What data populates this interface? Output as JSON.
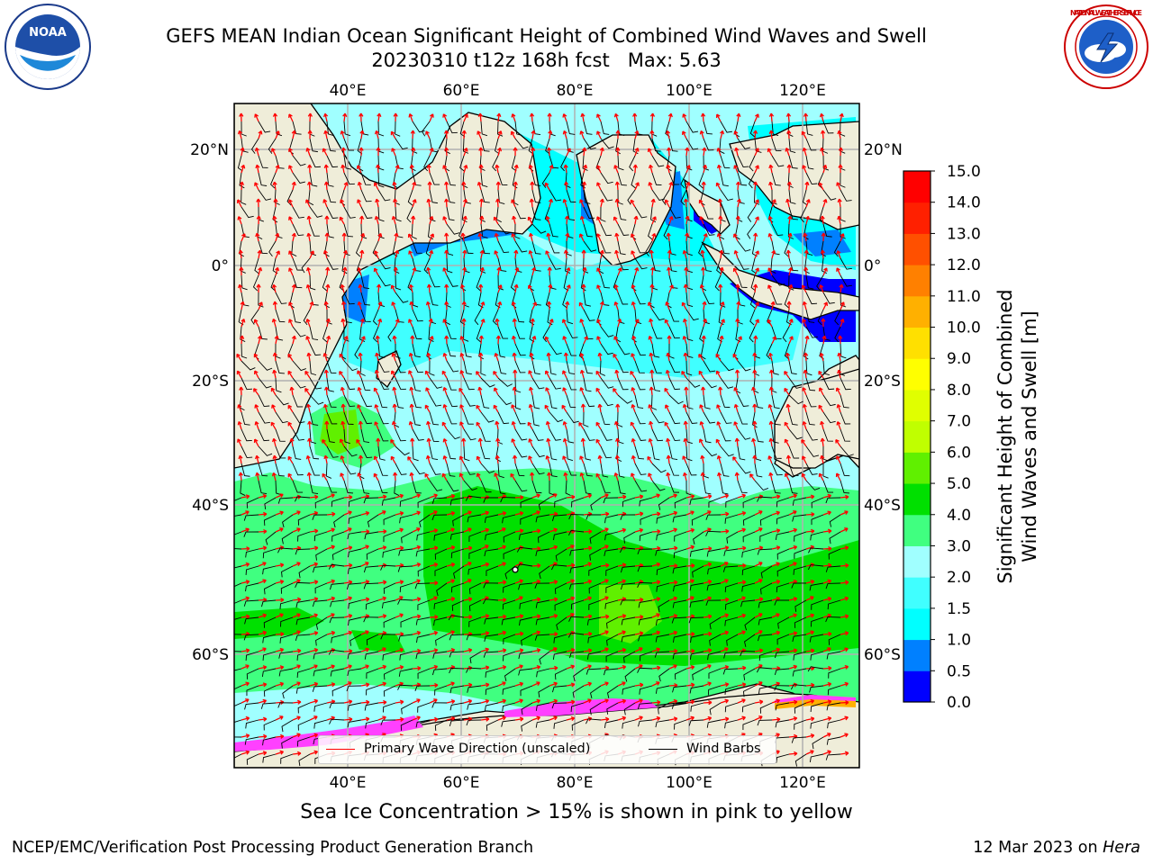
{
  "title": {
    "line1": "GEFS MEAN Indian Ocean Significant Height of Combined Wind Waves and Swell",
    "line2_date": "20230310 t12z 168h fcst",
    "line2_max": "Max: 5.63"
  },
  "logos": {
    "left": "NOAA",
    "right": "NATIONAL WEATHER SERVICE"
  },
  "map": {
    "lon_ticks": [
      "40°E",
      "60°E",
      "80°E",
      "100°E",
      "120°E"
    ],
    "lat_ticks": [
      "20°N",
      "0°",
      "20°S",
      "40°S",
      "60°S"
    ],
    "extent": {
      "lon": [
        20,
        130
      ],
      "lat": [
        -70,
        27
      ]
    },
    "gridlines": true
  },
  "legend": {
    "position": "bottom-center",
    "items": [
      {
        "label": "Primary Wave Direction (unscaled)",
        "color": "#ff0000"
      },
      {
        "label": "Wind Barbs",
        "color": "#000000"
      }
    ]
  },
  "colorbar": {
    "title": "Significant Height of Combined Wind Waves and Swell [m]",
    "title_line1": "Significant Height of Combined",
    "title_line2": "Wind Waves and Swell [m]",
    "ticks": [
      "0.0",
      "0.5",
      "1.0",
      "1.5",
      "2.0",
      "3.0",
      "4.0",
      "5.0",
      "6.0",
      "7.0",
      "8.0",
      "9.0",
      "10.0",
      "11.0",
      "12.0",
      "13.0",
      "14.0",
      "15.0"
    ],
    "colors": [
      "#0000ff",
      "#0080ff",
      "#00ffff",
      "#40ffff",
      "#a0ffff",
      "#40ff80",
      "#00e000",
      "#60f000",
      "#c0ff00",
      "#e0ff00",
      "#ffff00",
      "#ffe000",
      "#ffb000",
      "#ff8000",
      "#ff5000",
      "#ff2000",
      "#ff0000"
    ]
  },
  "caption": "Sea Ice Concentration > 15% is shown in pink to yellow",
  "footer": {
    "left": "NCEP/EMC/Verification Post Processing Product Generation Branch",
    "right_prefix": "12 Mar 2023 on ",
    "right_host": "Hera"
  }
}
